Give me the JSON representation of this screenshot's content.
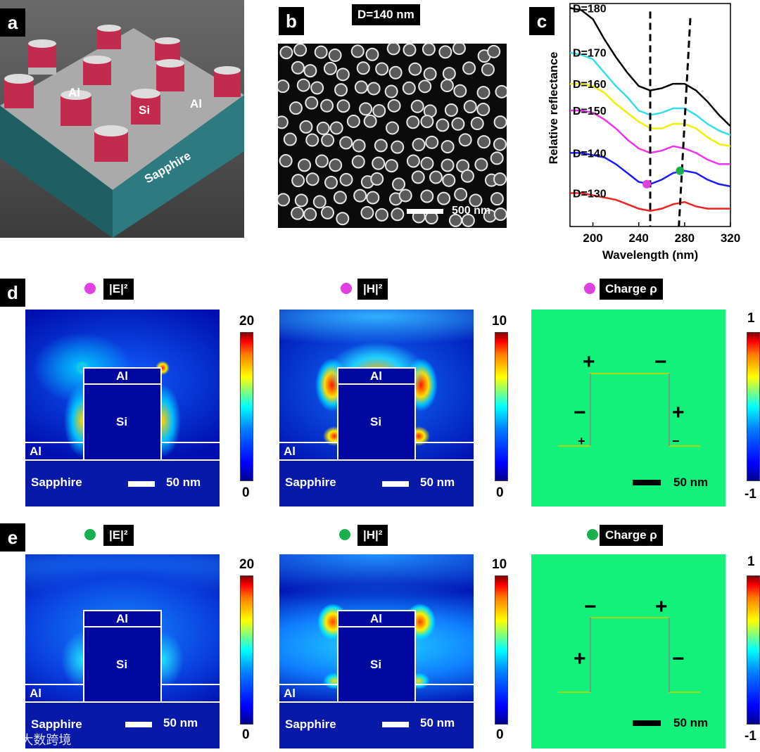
{
  "panel_a": {
    "label": "a",
    "text_al_left": "Al",
    "text_si": "Si",
    "text_al_right": "Al",
    "text_sapphire": "Sapphire"
  },
  "panel_b": {
    "label": "b",
    "title": "D=140 nm",
    "scalebar": "500 nm"
  },
  "panel_c": {
    "label": "c",
    "chart_data": {
      "type": "line",
      "xlabel": "Wavelength (nm)",
      "ylabel": "Relative reflectance",
      "xlim": [
        180,
        320
      ],
      "xticks": [
        "200",
        "240",
        "280",
        "320"
      ],
      "series": [
        {
          "name": "D=180",
          "color": "#000000",
          "x": [
            180,
            190,
            200,
            210,
            220,
            230,
            240,
            250,
            260,
            270,
            280,
            290,
            300,
            310,
            320
          ],
          "y": [
            0.98,
            0.97,
            0.93,
            0.84,
            0.76,
            0.69,
            0.63,
            0.61,
            0.62,
            0.64,
            0.64,
            0.61,
            0.56,
            0.5,
            0.45
          ]
        },
        {
          "name": "D=170",
          "color": "#33ddee",
          "x": [
            180,
            190,
            200,
            210,
            220,
            230,
            240,
            250,
            260,
            270,
            280,
            290,
            300,
            310,
            320
          ],
          "y": [
            0.78,
            0.77,
            0.75,
            0.69,
            0.63,
            0.58,
            0.52,
            0.5,
            0.51,
            0.53,
            0.53,
            0.5,
            0.46,
            0.43,
            0.41
          ]
        },
        {
          "name": "D=160",
          "color": "#f0f000",
          "x": [
            180,
            190,
            200,
            210,
            220,
            230,
            240,
            250,
            260,
            270,
            280,
            290,
            300,
            310,
            320
          ],
          "y": [
            0.64,
            0.64,
            0.63,
            0.6,
            0.55,
            0.51,
            0.47,
            0.44,
            0.44,
            0.46,
            0.46,
            0.44,
            0.4,
            0.37,
            0.36
          ]
        },
        {
          "name": "D=150",
          "color": "#ee33ee",
          "x": [
            180,
            190,
            200,
            210,
            220,
            230,
            240,
            250,
            260,
            270,
            280,
            290,
            300,
            310,
            320
          ],
          "y": [
            0.52,
            0.52,
            0.51,
            0.48,
            0.44,
            0.39,
            0.35,
            0.33,
            0.34,
            0.36,
            0.35,
            0.33,
            0.3,
            0.28,
            0.28
          ]
        },
        {
          "name": "D=140",
          "color": "#1a1aff",
          "x": [
            180,
            190,
            200,
            210,
            220,
            230,
            240,
            250,
            260,
            270,
            280,
            290,
            300,
            310,
            320
          ],
          "y": [
            0.33,
            0.33,
            0.32,
            0.31,
            0.28,
            0.24,
            0.2,
            0.19,
            0.21,
            0.24,
            0.25,
            0.24,
            0.21,
            0.19,
            0.18
          ]
        },
        {
          "name": "D=130",
          "color": "#ee2222",
          "x": [
            180,
            190,
            200,
            210,
            220,
            230,
            240,
            250,
            260,
            270,
            280,
            290,
            300,
            310,
            320
          ],
          "y": [
            0.15,
            0.15,
            0.14,
            0.13,
            0.12,
            0.1,
            0.08,
            0.07,
            0.08,
            0.1,
            0.11,
            0.09,
            0.08,
            0.08,
            0.08
          ]
        }
      ],
      "grid": false
    }
  },
  "row_d": {
    "label": "d",
    "dot_color": "#e040e0",
    "titles": [
      "|E|²",
      "|H|²",
      "Charge ρ"
    ],
    "cb_max": [
      "20",
      "10",
      "1"
    ],
    "cb_min": [
      "0",
      "0",
      "-1"
    ],
    "al": "Al",
    "si": "Si",
    "sapphire": "Sapphire",
    "scale": "50 nm",
    "charges": {
      "top_left": "+",
      "top_right": "−",
      "mid_left": "−",
      "mid_right": "+",
      "low_left": "+",
      "low_right": "−"
    }
  },
  "row_e": {
    "label": "e",
    "dot_color": "#1ab050",
    "titles": [
      "|E|²",
      "|H|²",
      "Charge ρ"
    ],
    "cb_max": [
      "20",
      "10",
      "1"
    ],
    "cb_min": [
      "0",
      "0",
      "-1"
    ],
    "al": "Al",
    "si": "Si",
    "sapphire": "Sapphire",
    "scale": "50 nm",
    "charges": {
      "top_left": "−",
      "top_right": "+",
      "mid_left": "+",
      "mid_right": "−"
    }
  },
  "watermark": "大数跨境"
}
